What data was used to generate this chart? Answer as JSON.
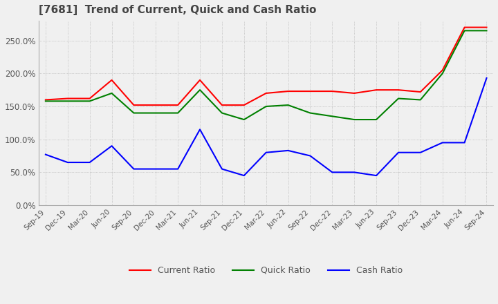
{
  "title": "[7681]  Trend of Current, Quick and Cash Ratio",
  "x_labels": [
    "Sep-19",
    "Dec-19",
    "Mar-20",
    "Jun-20",
    "Sep-20",
    "Dec-20",
    "Mar-21",
    "Jun-21",
    "Sep-21",
    "Dec-21",
    "Mar-22",
    "Jun-22",
    "Sep-22",
    "Dec-22",
    "Mar-23",
    "Jun-23",
    "Sep-23",
    "Dec-23",
    "Mar-24",
    "Jun-24",
    "Sep-24"
  ],
  "current_ratio": [
    160,
    162,
    162,
    190,
    152,
    152,
    152,
    190,
    152,
    152,
    170,
    173,
    173,
    173,
    170,
    175,
    175,
    172,
    205,
    270,
    270
  ],
  "quick_ratio": [
    158,
    158,
    158,
    170,
    140,
    140,
    140,
    175,
    140,
    130,
    150,
    152,
    140,
    135,
    130,
    130,
    162,
    160,
    200,
    265,
    265
  ],
  "cash_ratio": [
    77,
    65,
    65,
    90,
    55,
    55,
    55,
    115,
    55,
    45,
    80,
    83,
    75,
    50,
    50,
    45,
    80,
    80,
    95,
    95,
    193
  ],
  "ylim": [
    0,
    280
  ],
  "yticks": [
    0,
    50,
    100,
    150,
    200,
    250
  ],
  "current_color": "#ff0000",
  "quick_color": "#008000",
  "cash_color": "#0000ff",
  "bg_color": "#f0f0f0",
  "grid_color": "#aaaaaa",
  "title_color": "#444444",
  "title_fontsize": 11,
  "line_width": 1.5
}
